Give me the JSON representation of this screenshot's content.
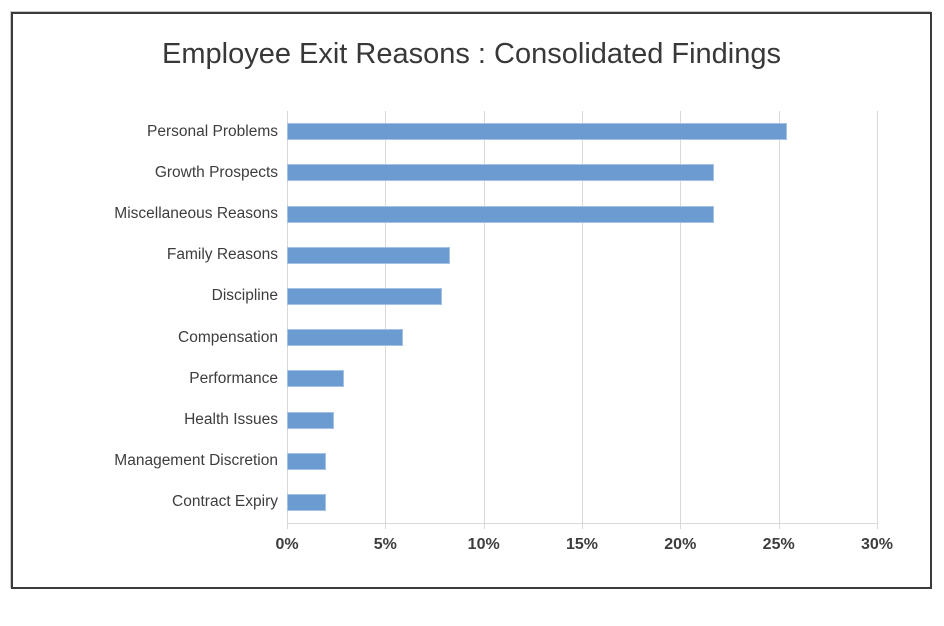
{
  "chart_data": {
    "type": "bar",
    "orientation": "horizontal",
    "title": "Employee Exit Reasons : Consolidated Findings",
    "categories": [
      "Personal Problems",
      "Growth Prospects",
      "Miscellaneous Reasons",
      "Family Reasons",
      "Discipline",
      "Compensation",
      "Performance",
      "Health Issues",
      "Management Discretion",
      "Contract Expiry"
    ],
    "values": [
      25.4,
      21.7,
      21.7,
      8.3,
      7.9,
      5.9,
      2.9,
      2.4,
      2.0,
      2.0
    ],
    "unit": "%",
    "xlabel": "",
    "ylabel": "",
    "xlim": [
      0,
      30
    ],
    "xticks": [
      0,
      5,
      10,
      15,
      20,
      25,
      30
    ],
    "xtick_labels": [
      "0%",
      "5%",
      "10%",
      "15%",
      "20%",
      "25%",
      "30%"
    ],
    "grid": "vertical-major",
    "legend": "none",
    "colors": {
      "bar_fill": "#6C9BD2",
      "bar_border": "#A3C1E5",
      "gridline": "#D9D9D9",
      "axis_line": "#D9D9D9",
      "frame_border": "#3B3B3B",
      "title_text": "#383838",
      "label_text": "#3D3D3D",
      "background": "#FFFFFF"
    }
  }
}
